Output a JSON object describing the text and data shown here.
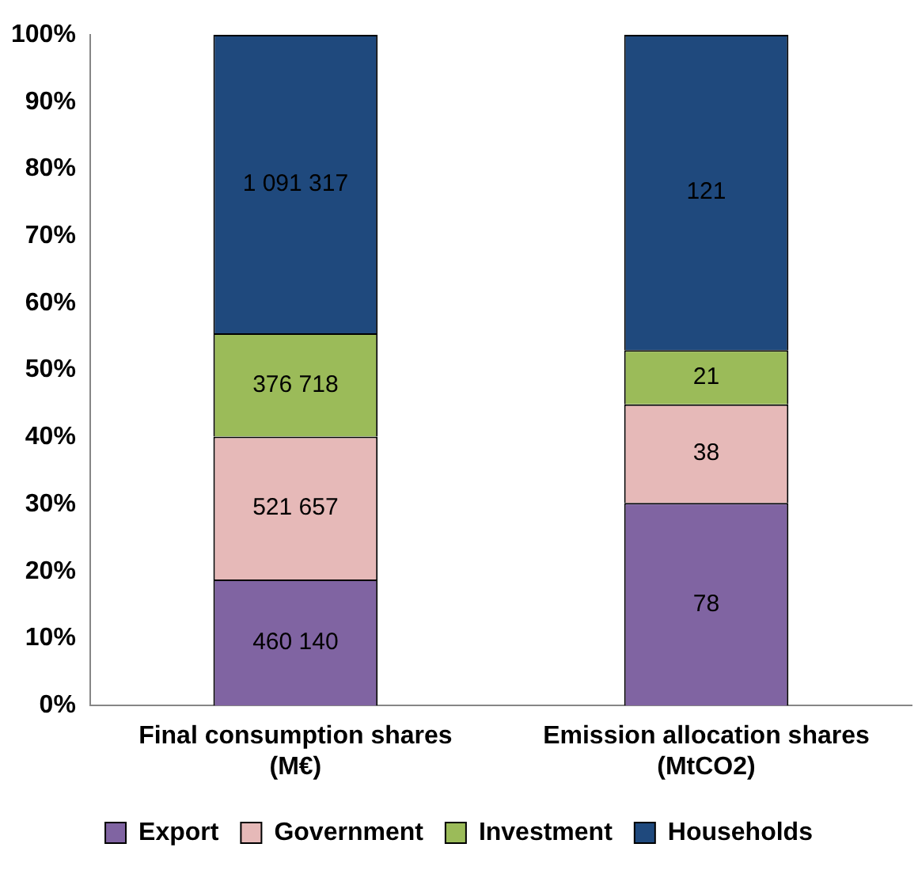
{
  "chart_data": {
    "type": "bar",
    "stacked": true,
    "categories": [
      "Final consumption shares\n(M€)",
      "Emission allocation shares\n(MtCO2)"
    ],
    "series": [
      {
        "name": "Export",
        "color": "#8064a2",
        "values": [
          18.8,
          30.2
        ]
      },
      {
        "name": "Government",
        "color": "#e6b9b8",
        "values": [
          21.3,
          14.7
        ]
      },
      {
        "name": "Investment",
        "color": "#9bbb59",
        "values": [
          15.4,
          8.1
        ]
      },
      {
        "name": "Households",
        "color": "#1f497d",
        "values": [
          44.5,
          47.0
        ]
      }
    ],
    "annotations": [
      "460 140",
      "521 657",
      "376 718",
      "1 091 317",
      "78",
      "38",
      "21",
      "121"
    ],
    "ylim": [
      0,
      100
    ],
    "yticks": [
      {
        "value": 0,
        "label": "0%"
      },
      {
        "value": 10,
        "label": "10%"
      },
      {
        "value": 20,
        "label": "20%"
      },
      {
        "value": 30,
        "label": "30%"
      },
      {
        "value": 40,
        "label": "40%"
      },
      {
        "value": 50,
        "label": "50%"
      },
      {
        "value": 60,
        "label": "60%"
      },
      {
        "value": 70,
        "label": "70%"
      },
      {
        "value": 80,
        "label": "80%"
      },
      {
        "value": 90,
        "label": "90%"
      },
      {
        "value": 100,
        "label": "100%"
      }
    ],
    "grid": false,
    "legend": "bottom"
  }
}
